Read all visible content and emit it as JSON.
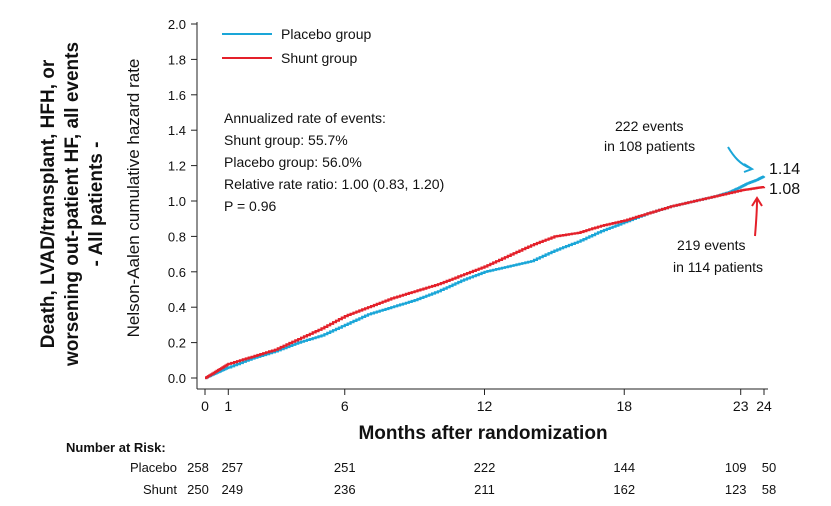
{
  "chart_data": {
    "type": "line",
    "ylabel_outer": [
      "Death, LVAD/transplant, HFH, or",
      "worsening out-patient HF, all events",
      "- All patients -"
    ],
    "ylabel": "Nelson-Aalen cumulative hazard rate",
    "xlabel": "Months after randomization",
    "xlim": [
      0,
      24.6
    ],
    "ylim": [
      0,
      2.0
    ],
    "x_ticks": [
      0,
      1,
      6,
      12,
      18,
      23,
      24
    ],
    "y_ticks": [
      0.0,
      0.2,
      0.4,
      0.6,
      0.8,
      1.0,
      1.2,
      1.4,
      1.6,
      1.8,
      2.0
    ],
    "legend_position": "top-left",
    "series": [
      {
        "name": "Placebo group",
        "color": "#1aa6d8",
        "x": [
          0,
          0.5,
          1,
          2,
          3,
          4,
          5,
          6,
          7,
          8,
          9,
          10,
          11,
          12,
          13,
          14,
          15,
          16,
          17,
          18,
          19,
          20,
          21,
          22,
          22.5,
          23,
          23.3,
          23.7,
          24
        ],
        "y": [
          0,
          0.03,
          0.06,
          0.11,
          0.15,
          0.2,
          0.24,
          0.3,
          0.36,
          0.4,
          0.44,
          0.49,
          0.55,
          0.6,
          0.63,
          0.66,
          0.72,
          0.77,
          0.83,
          0.88,
          0.93,
          0.97,
          1.0,
          1.03,
          1.05,
          1.08,
          1.1,
          1.12,
          1.14
        ]
      },
      {
        "name": "Shunt group",
        "color": "#e4202a",
        "x": [
          0,
          0.5,
          1,
          2,
          3,
          4,
          5,
          6,
          7,
          8,
          9,
          10,
          11,
          12,
          13,
          14,
          15,
          16,
          17,
          18,
          19,
          20,
          21,
          22,
          23,
          23.5,
          24
        ],
        "y": [
          0,
          0.04,
          0.08,
          0.12,
          0.16,
          0.22,
          0.28,
          0.35,
          0.4,
          0.45,
          0.49,
          0.53,
          0.58,
          0.63,
          0.69,
          0.75,
          0.8,
          0.82,
          0.86,
          0.89,
          0.93,
          0.97,
          1.0,
          1.03,
          1.06,
          1.07,
          1.08
        ]
      }
    ],
    "end_labels": [
      {
        "series": "Placebo group",
        "text": "1.14"
      },
      {
        "series": "Shunt group",
        "text": "1.08"
      }
    ],
    "annotations": {
      "stats": [
        "Annualized rate of events:",
        "Shunt group: 55.7%",
        "Placebo group: 56.0%",
        "Relative rate ratio: 1.00 (0.83, 1.20)",
        "P = 0.96"
      ],
      "placebo_events": [
        "222 events",
        "in 108 patients"
      ],
      "shunt_events": [
        "219 events",
        "in 114 patients"
      ]
    },
    "risk_table": {
      "title": "Number at Risk:",
      "rows": [
        {
          "label": "Placebo",
          "values": [
            "258",
            "257",
            "251",
            "222",
            "144",
            "109",
            "50"
          ]
        },
        {
          "label": "Shunt",
          "values": [
            "250",
            "249",
            "236",
            "211",
            "162",
            "123",
            "58"
          ]
        }
      ]
    }
  }
}
